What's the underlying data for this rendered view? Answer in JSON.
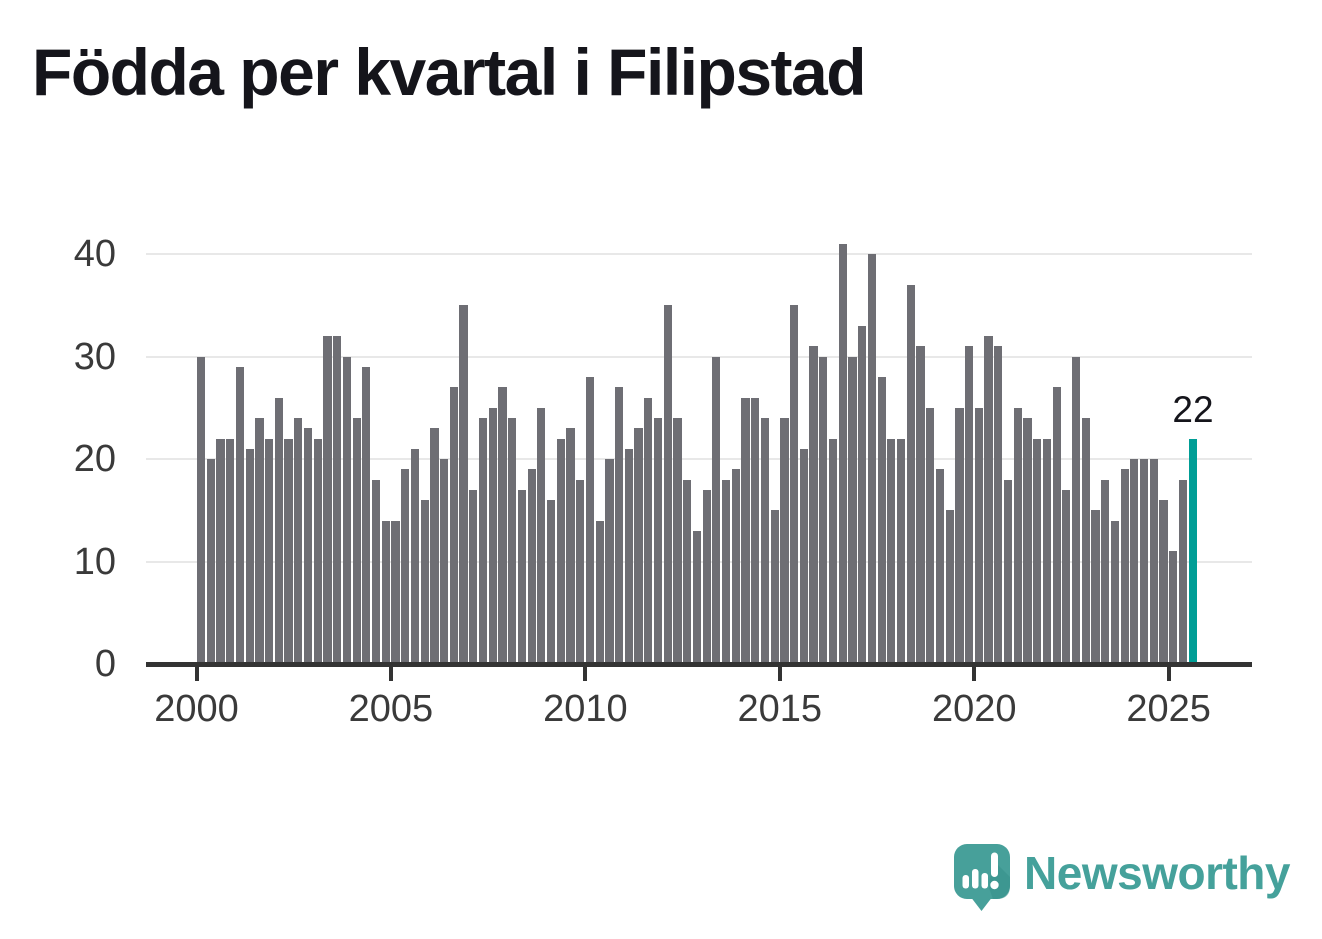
{
  "header": {
    "title": "Födda per kvartal i Filipstad"
  },
  "chart_data": {
    "type": "bar",
    "title": "Födda per kvartal i Filipstad",
    "frequency": "quarterly",
    "x_start": {
      "year": 2000,
      "quarter": 1
    },
    "values": [
      30,
      20,
      22,
      22,
      29,
      21,
      24,
      22,
      26,
      22,
      24,
      23,
      22,
      32,
      32,
      30,
      24,
      29,
      18,
      14,
      14,
      19,
      21,
      16,
      23,
      20,
      27,
      35,
      17,
      24,
      25,
      27,
      24,
      17,
      19,
      25,
      16,
      22,
      23,
      18,
      28,
      14,
      20,
      27,
      21,
      23,
      26,
      24,
      35,
      24,
      18,
      13,
      17,
      30,
      18,
      19,
      26,
      26,
      24,
      15,
      24,
      35,
      21,
      31,
      30,
      22,
      41,
      30,
      33,
      40,
      28,
      22,
      22,
      37,
      31,
      25,
      19,
      15,
      25,
      31,
      25,
      32,
      31,
      18,
      25,
      24,
      22,
      22,
      27,
      17,
      30,
      24,
      15,
      18,
      14,
      19,
      20,
      20,
      20,
      16,
      11,
      18,
      22
    ],
    "x_tick_years": [
      2000,
      2005,
      2010,
      2015,
      2020,
      2025
    ],
    "y_ticks": [
      0,
      10,
      20,
      30,
      40
    ],
    "ylim": [
      0,
      43
    ],
    "grid": "horizontal",
    "legend": "none",
    "highlight": {
      "index": 102,
      "value": 22,
      "label": "22"
    },
    "colors": {
      "bar": "#6E6E74",
      "highlight": "#009E96",
      "grid": "#E8E8E8",
      "axis": "#333333",
      "tick_label": "#3A3A3A",
      "annotation": "#15151B"
    }
  },
  "footer": {
    "logo_text": "Newsworthy",
    "logo_color": "#45A19B",
    "logo_icon": "speech-bubble-bar-chart-exclamation"
  }
}
